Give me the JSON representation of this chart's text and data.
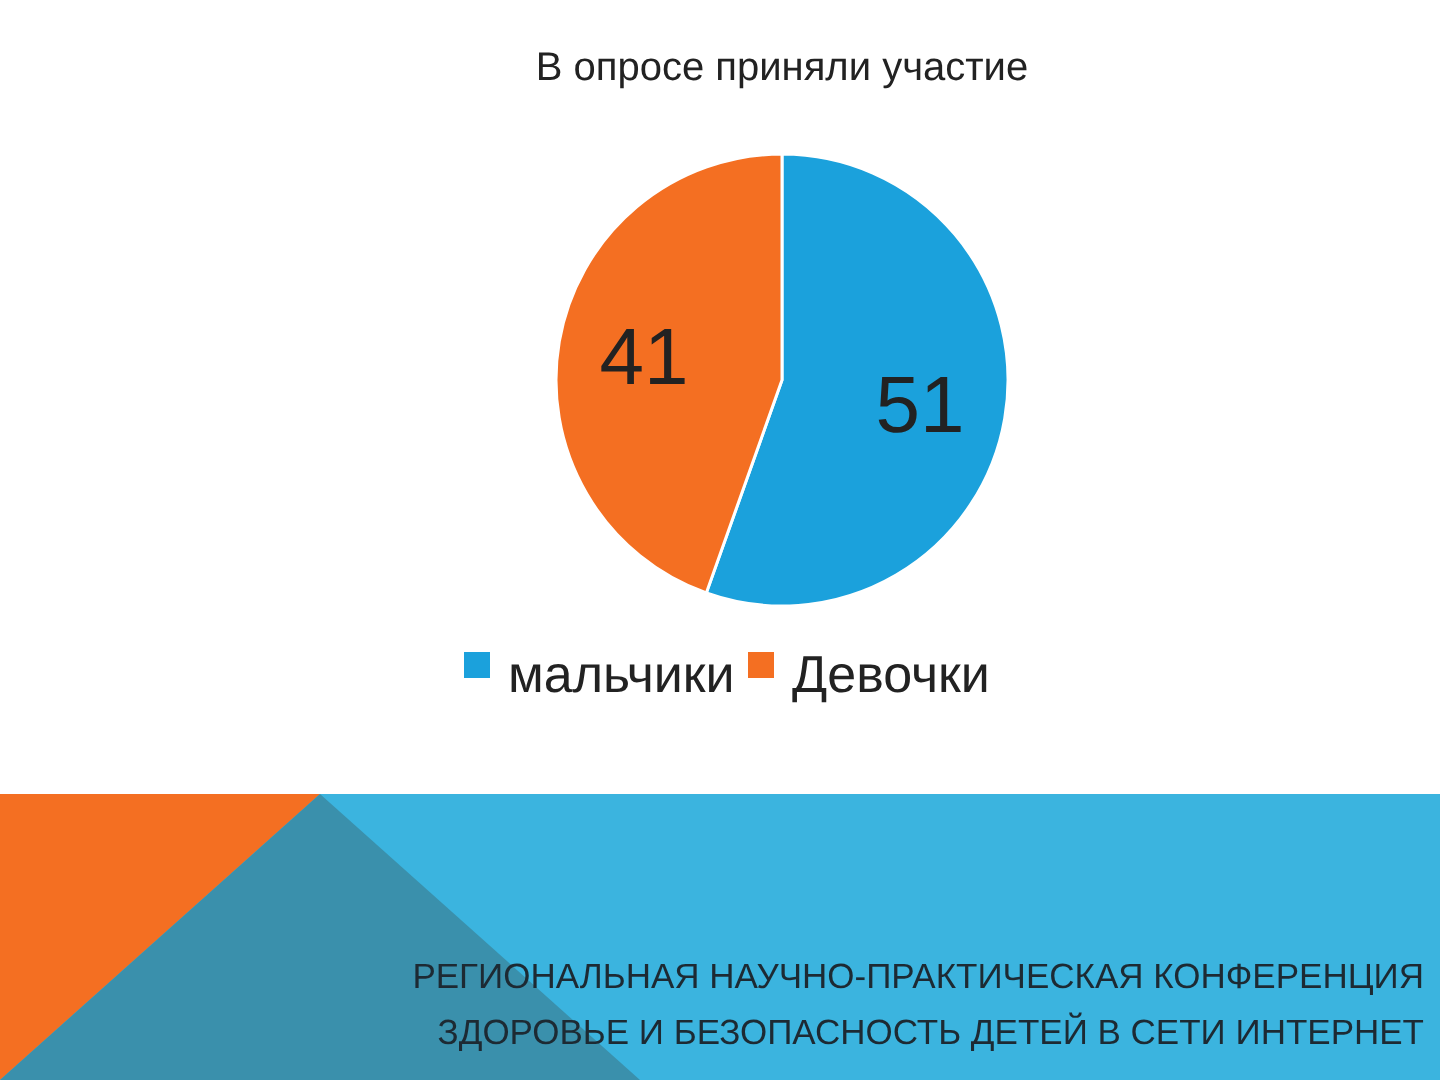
{
  "chart_data": {
    "type": "pie",
    "title": "В опросе приняли участие",
    "categories": [
      "мальчики",
      "Девочки"
    ],
    "values": [
      51,
      41
    ],
    "colors": [
      "#1ba1dc",
      "#f46f22"
    ],
    "data_labels": true,
    "legend": "bottom",
    "annotations": [
      "РЕГИОНАЛЬНАЯ НАУЧНО-ПРАКТИЧЕСКАЯ КОНФЕРЕНЦИЯ",
      "ЗДОРОВЬЕ И БЕЗОПАСНОСТЬ ДЕТЕЙ В СЕТИ ИНТЕРНЕТ"
    ]
  }
}
